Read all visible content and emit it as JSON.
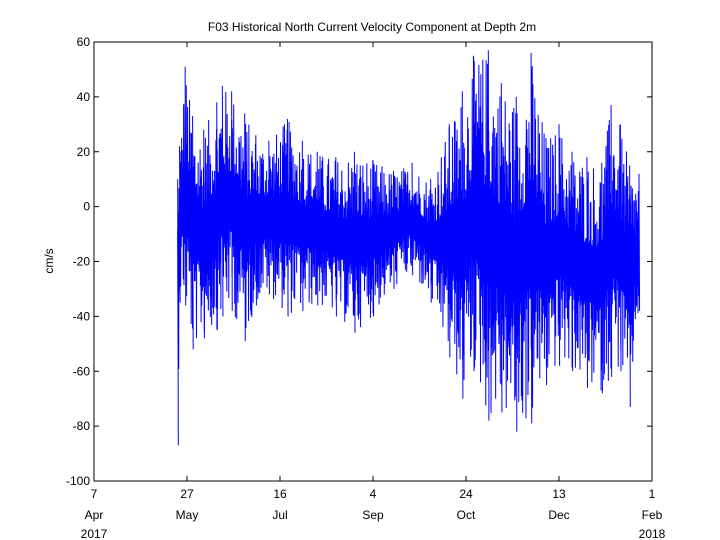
{
  "chart_data": {
    "type": "line",
    "title": "F03 Historical North Current Velocity Component at Depth 2m",
    "xlabel": "",
    "ylabel": "cm/s",
    "ylim": [
      -100,
      60
    ],
    "yticks": [
      -100,
      -80,
      -60,
      -40,
      -20,
      0,
      20,
      40,
      60
    ],
    "xlim": [
      "2017-04-07",
      "2018-02-01"
    ],
    "xticks": [
      {
        "date": "2017-04-07",
        "day": "7",
        "month": "Apr"
      },
      {
        "date": "2017-05-27",
        "day": "27",
        "month": "May"
      },
      {
        "date": "2017-07-16",
        "day": "16",
        "month": "Jul"
      },
      {
        "date": "2017-09-04",
        "day": "4",
        "month": "Sep"
      },
      {
        "date": "2017-10-24",
        "day": "24",
        "month": "Oct"
      },
      {
        "date": "2017-12-13",
        "day": "13",
        "month": "Dec"
      },
      {
        "date": "2018-02-01",
        "day": "1",
        "month": "Feb"
      }
    ],
    "year_labels": {
      "start": "2017",
      "end": "2018"
    },
    "grid": false,
    "series": [
      {
        "color": "#0000ff",
        "start": "2017-05-22",
        "end": "2018-01-25",
        "min": -87,
        "max": 57,
        "envelope": [
          {
            "date": "2017-05-22",
            "min": -87,
            "max": 10
          },
          {
            "date": "2017-05-23",
            "min": -35,
            "max": 22
          },
          {
            "date": "2017-05-26",
            "min": -36,
            "max": 51
          },
          {
            "date": "2017-05-30",
            "min": -52,
            "max": 33
          },
          {
            "date": "2017-06-05",
            "min": -48,
            "max": 28
          },
          {
            "date": "2017-06-12",
            "min": -45,
            "max": 38
          },
          {
            "date": "2017-06-15",
            "min": -40,
            "max": 44
          },
          {
            "date": "2017-06-20",
            "min": -38,
            "max": 42
          },
          {
            "date": "2017-06-27",
            "min": -49,
            "max": 34
          },
          {
            "date": "2017-07-03",
            "min": -36,
            "max": 26
          },
          {
            "date": "2017-07-10",
            "min": -32,
            "max": 24
          },
          {
            "date": "2017-07-20",
            "min": -40,
            "max": 32
          },
          {
            "date": "2017-07-28",
            "min": -38,
            "max": 24
          },
          {
            "date": "2017-08-05",
            "min": -36,
            "max": 20
          },
          {
            "date": "2017-08-15",
            "min": -40,
            "max": 18
          },
          {
            "date": "2017-08-25",
            "min": -46,
            "max": 20
          },
          {
            "date": "2017-09-04",
            "min": -40,
            "max": 17
          },
          {
            "date": "2017-09-15",
            "min": -30,
            "max": 13
          },
          {
            "date": "2017-09-25",
            "min": -25,
            "max": 16
          },
          {
            "date": "2017-10-05",
            "min": -35,
            "max": 10
          },
          {
            "date": "2017-10-15",
            "min": -55,
            "max": 30
          },
          {
            "date": "2017-10-22",
            "min": -70,
            "max": 42
          },
          {
            "date": "2017-10-28",
            "min": -60,
            "max": 55
          },
          {
            "date": "2017-11-05",
            "min": -78,
            "max": 57
          },
          {
            "date": "2017-11-12",
            "min": -75,
            "max": 45
          },
          {
            "date": "2017-11-20",
            "min": -82,
            "max": 40
          },
          {
            "date": "2017-11-28",
            "min": -79,
            "max": 56
          },
          {
            "date": "2017-12-06",
            "min": -65,
            "max": 25
          },
          {
            "date": "2017-12-13",
            "min": -58,
            "max": 30
          },
          {
            "date": "2017-12-20",
            "min": -60,
            "max": 20
          },
          {
            "date": "2017-12-28",
            "min": -66,
            "max": 18
          },
          {
            "date": "2018-01-05",
            "min": -68,
            "max": 16
          },
          {
            "date": "2018-01-10",
            "min": -62,
            "max": 37
          },
          {
            "date": "2018-01-15",
            "min": -60,
            "max": 30
          },
          {
            "date": "2018-01-20",
            "min": -73,
            "max": 15
          },
          {
            "date": "2018-01-25",
            "min": -38,
            "max": 12
          }
        ]
      }
    ]
  }
}
